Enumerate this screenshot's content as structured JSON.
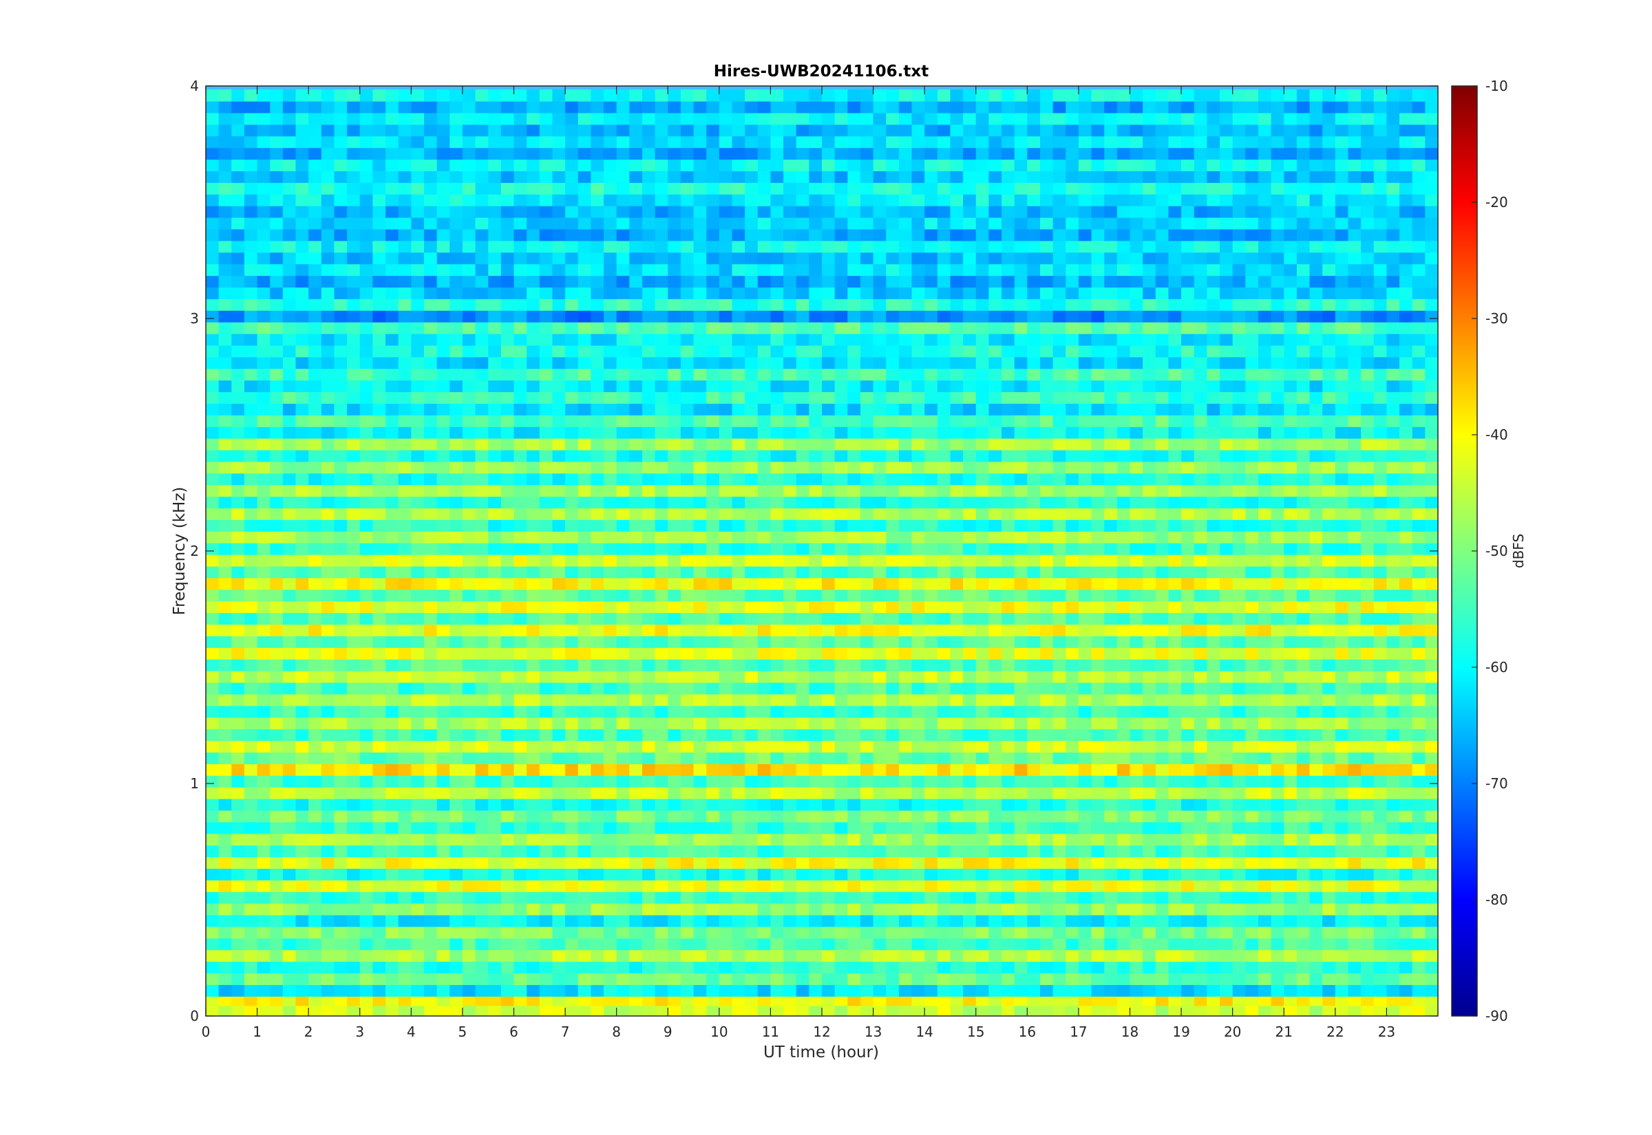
{
  "chart_data": {
    "type": "heatmap",
    "title": "Hires-UWB20241106.txt",
    "xlabel": "UT time (hour)",
    "ylabel": "Frequency (kHz)",
    "xlim": [
      0,
      24
    ],
    "ylim": [
      0,
      4
    ],
    "x_ticks": [
      "0",
      "1",
      "2",
      "3",
      "4",
      "5",
      "6",
      "7",
      "8",
      "9",
      "10",
      "11",
      "12",
      "13",
      "14",
      "15",
      "16",
      "17",
      "18",
      "19",
      "20",
      "21",
      "22",
      "23"
    ],
    "y_ticks": [
      "0",
      "1",
      "2",
      "3",
      "4"
    ],
    "colorbar": {
      "label": "dBFS",
      "range": [
        -90,
        -10
      ],
      "ticks": [
        "-10",
        "-20",
        "-30",
        "-40",
        "-50",
        "-60",
        "-70",
        "-80",
        "-90"
      ],
      "colormap": "jet",
      "colors": [
        "#00008f",
        "#0000ff",
        "#00ffff",
        "#ffff00",
        "#ff0000",
        "#800000"
      ]
    },
    "bands_khz_dbfs": [
      [
        0.02,
        -44
      ],
      [
        0.07,
        -40
      ],
      [
        0.11,
        -62
      ],
      [
        0.16,
        -52
      ],
      [
        0.21,
        -57
      ],
      [
        0.26,
        -46
      ],
      [
        0.31,
        -55
      ],
      [
        0.36,
        -50
      ],
      [
        0.41,
        -60
      ],
      [
        0.46,
        -48
      ],
      [
        0.51,
        -56
      ],
      [
        0.56,
        -42
      ],
      [
        0.61,
        -58
      ],
      [
        0.66,
        -41
      ],
      [
        0.71,
        -55
      ],
      [
        0.76,
        -47
      ],
      [
        0.81,
        -56
      ],
      [
        0.86,
        -50
      ],
      [
        0.91,
        -58
      ],
      [
        0.96,
        -45
      ],
      [
        1.01,
        -55
      ],
      [
        1.06,
        -38
      ],
      [
        1.11,
        -52
      ],
      [
        1.16,
        -44
      ],
      [
        1.21,
        -55
      ],
      [
        1.26,
        -47
      ],
      [
        1.31,
        -56
      ],
      [
        1.36,
        -46
      ],
      [
        1.41,
        -55
      ],
      [
        1.46,
        -45
      ],
      [
        1.51,
        -54
      ],
      [
        1.56,
        -42
      ],
      [
        1.61,
        -53
      ],
      [
        1.66,
        -41
      ],
      [
        1.71,
        -54
      ],
      [
        1.76,
        -42
      ],
      [
        1.81,
        -53
      ],
      [
        1.86,
        -40
      ],
      [
        1.91,
        -54
      ],
      [
        1.96,
        -43
      ],
      [
        2.01,
        -56
      ],
      [
        2.06,
        -47
      ],
      [
        2.11,
        -57
      ],
      [
        2.16,
        -46
      ],
      [
        2.21,
        -57
      ],
      [
        2.26,
        -47
      ],
      [
        2.31,
        -58
      ],
      [
        2.36,
        -48
      ],
      [
        2.41,
        -58
      ],
      [
        2.46,
        -47
      ],
      [
        2.51,
        -60
      ],
      [
        2.56,
        -54
      ],
      [
        2.61,
        -62
      ],
      [
        2.66,
        -56
      ],
      [
        2.71,
        -61
      ],
      [
        2.76,
        -55
      ],
      [
        2.81,
        -62
      ],
      [
        2.86,
        -58
      ],
      [
        2.91,
        -61
      ],
      [
        2.96,
        -54
      ],
      [
        3.01,
        -69
      ],
      [
        3.06,
        -57
      ],
      [
        3.11,
        -63
      ],
      [
        3.16,
        -66
      ],
      [
        3.21,
        -62
      ],
      [
        3.26,
        -64
      ],
      [
        3.31,
        -60
      ],
      [
        3.36,
        -66
      ],
      [
        3.41,
        -62
      ],
      [
        3.46,
        -65
      ],
      [
        3.51,
        -61
      ],
      [
        3.56,
        -58
      ],
      [
        3.61,
        -64
      ],
      [
        3.66,
        -60
      ],
      [
        3.71,
        -66
      ],
      [
        3.76,
        -62
      ],
      [
        3.81,
        -65
      ],
      [
        3.86,
        -61
      ],
      [
        3.91,
        -66
      ],
      [
        3.96,
        -60
      ]
    ]
  }
}
